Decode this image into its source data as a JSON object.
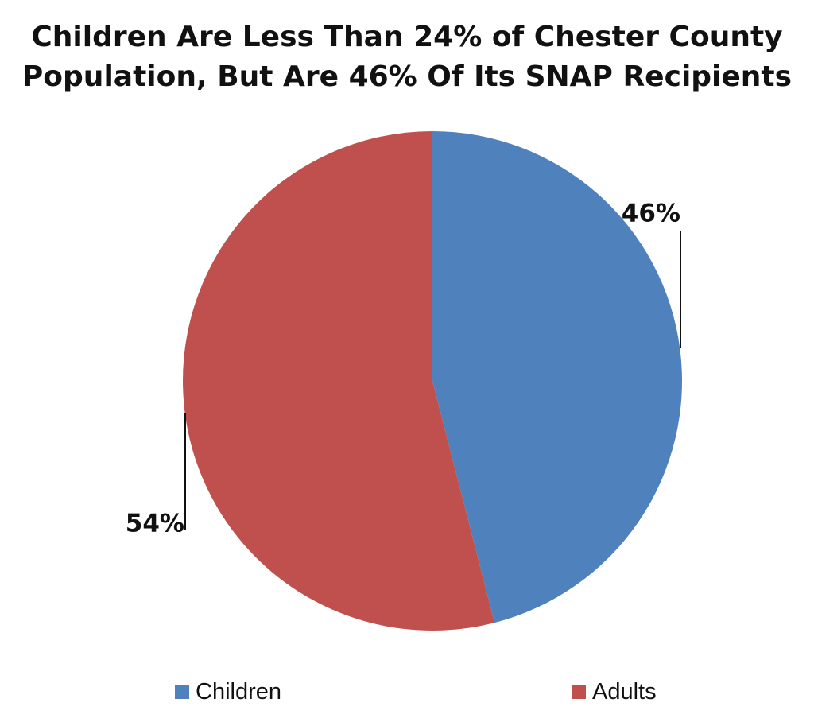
{
  "chart_data": {
    "type": "pie",
    "title_lines": [
      "Children Are Less Than 24% of Chester County",
      "Population, But Are 46% Of Its SNAP Recipients"
    ],
    "slices": [
      {
        "name": "Children",
        "value": 46,
        "label": "46%",
        "color": "#4F81BD"
      },
      {
        "name": "Adults",
        "value": 54,
        "label": "54%",
        "color": "#C0504D"
      }
    ],
    "start_angle": "12 o'clock",
    "direction": "clockwise",
    "data_labels": "outside with leader lines",
    "legend": {
      "position": "bottom",
      "entries": [
        "Children",
        "Adults"
      ]
    }
  }
}
